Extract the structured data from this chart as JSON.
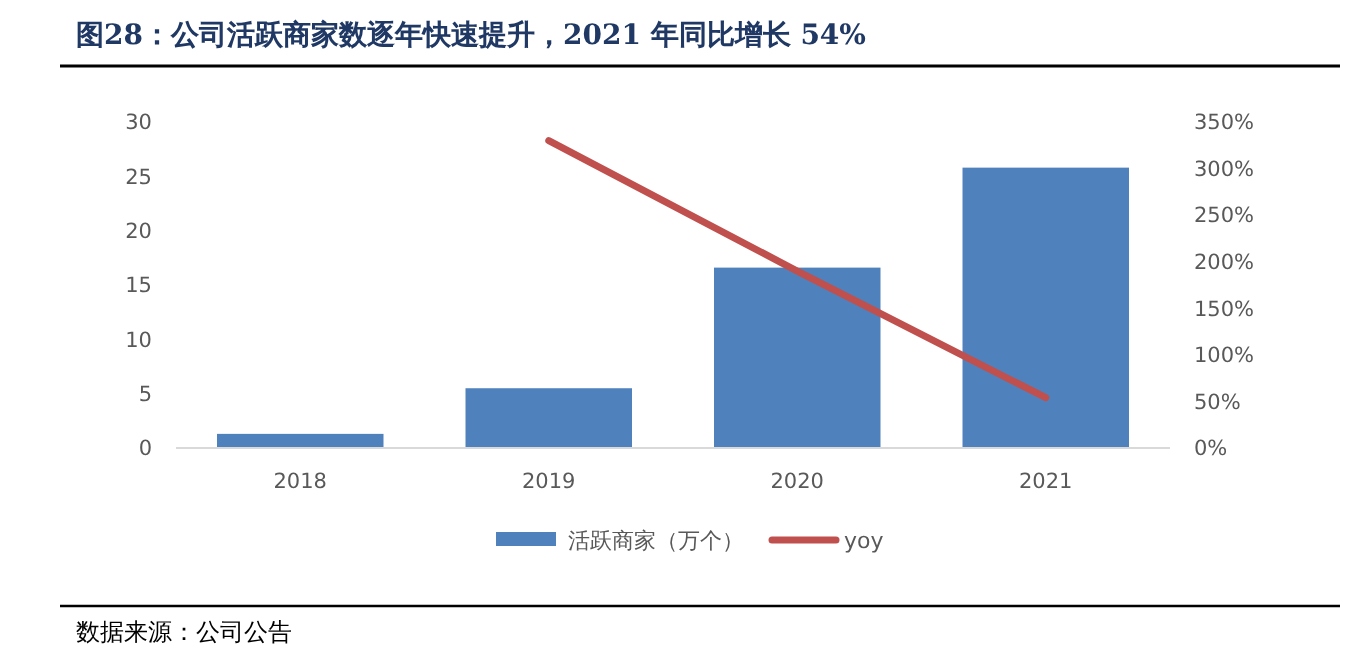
{
  "chart_data": {
    "type": "bar",
    "title": "图28：公司活跃商家数逐年快速提升，2021 年同比增长 54%",
    "categories": [
      "2018",
      "2019",
      "2020",
      "2021"
    ],
    "series": [
      {
        "name": "活跃商家（万个）",
        "color": "#4f81bd",
        "values": [
          1.3,
          5.5,
          16.6,
          25.8
        ]
      },
      {
        "name": "yoy",
        "type": "line",
        "axis": "y2",
        "color": "#c0504d",
        "values": [
          null,
          330,
          190,
          54
        ]
      }
    ],
    "ylim": [
      0,
      30
    ],
    "yticks": [
      0,
      5,
      10,
      15,
      20,
      25,
      30
    ],
    "y2lim": [
      0,
      350
    ],
    "y2ticks": [
      {
        "value": 0,
        "label": "0%"
      },
      {
        "value": 50,
        "label": "50%"
      },
      {
        "value": 100,
        "label": "100%"
      },
      {
        "value": 150,
        "label": "150%"
      },
      {
        "value": 200,
        "label": "200%"
      },
      {
        "value": 250,
        "label": "250%"
      },
      {
        "value": 300,
        "label": "300%"
      },
      {
        "value": 350,
        "label": "350%"
      }
    ],
    "legend": "bottom",
    "annotations": [
      "数据来源：公司公告"
    ]
  }
}
